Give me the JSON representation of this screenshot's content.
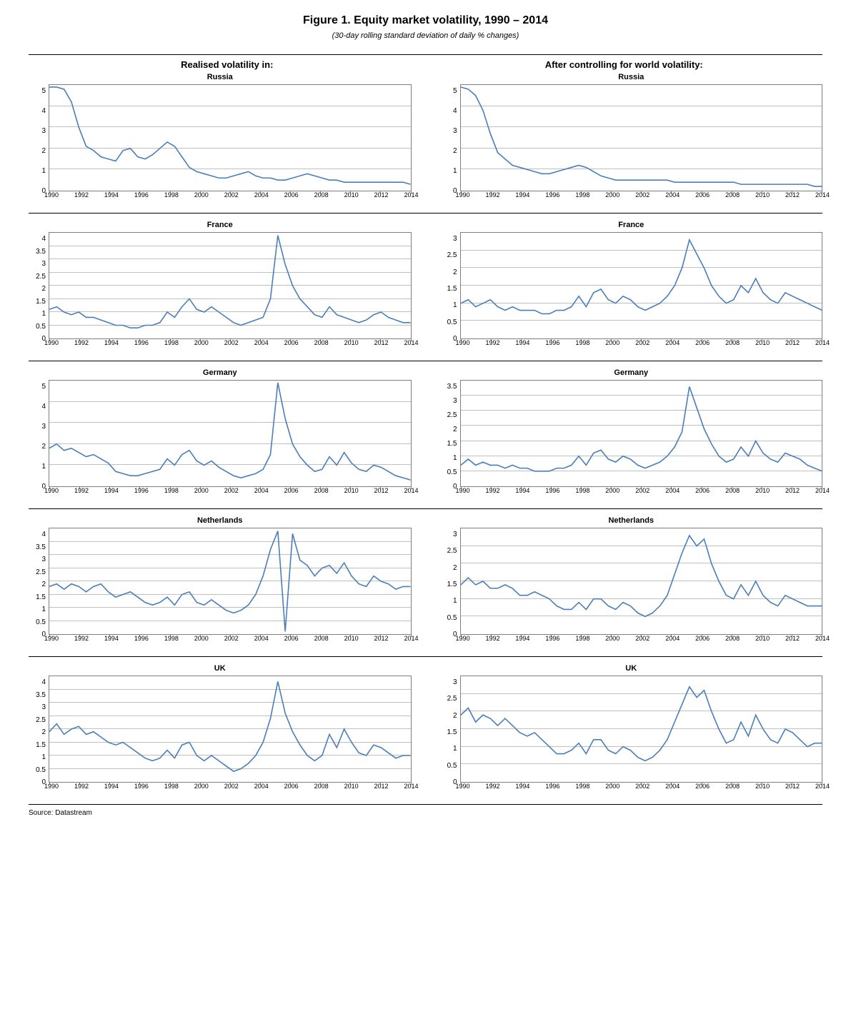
{
  "title": "Figure 1. Equity market volatility, 1990 – 2014",
  "subtitle": "(30-day rolling standard deviation of daily % changes)",
  "source": "Source: Datastream",
  "style": {
    "line_color": "#4a7ebb",
    "grid_color": "#bfbfbf",
    "axis_color": "#7f7f7f",
    "background": "#ffffff",
    "title_fontsize": 16,
    "label_fontsize": 11,
    "tick_fontsize": 9
  },
  "column_headers": [
    "Realised volatility in:",
    "After controlling for world volatility:"
  ],
  "x_ticks": [
    "1990",
    "1992",
    "1994",
    "1996",
    "1998",
    "2000",
    "2002",
    "2004",
    "2006",
    "2008",
    "2010",
    "2012",
    "2014"
  ],
  "rows": [
    {
      "left": {
        "title": "Russia",
        "y_ticks": [
          0,
          1,
          2,
          3,
          4,
          5
        ],
        "ymax": 5,
        "values": [
          4.9,
          4.9,
          4.8,
          4.2,
          3.0,
          2.1,
          1.9,
          1.6,
          1.5,
          1.4,
          1.9,
          2.0,
          1.6,
          1.5,
          1.7,
          2.0,
          2.3,
          2.1,
          1.6,
          1.1,
          0.9,
          0.8,
          0.7,
          0.6,
          0.6,
          0.7,
          0.8,
          0.9,
          0.7,
          0.6,
          0.6,
          0.5,
          0.5,
          0.6,
          0.7,
          0.8,
          0.7,
          0.6,
          0.5,
          0.5,
          0.4,
          0.4,
          0.4,
          0.4,
          0.4,
          0.4,
          0.4,
          0.4,
          0.4,
          0.3
        ]
      },
      "right": {
        "title": "Russia",
        "y_ticks": [
          0,
          1,
          2,
          3,
          4,
          5
        ],
        "ymax": 5,
        "values": [
          4.9,
          4.8,
          4.5,
          3.8,
          2.7,
          1.8,
          1.5,
          1.2,
          1.1,
          1.0,
          0.9,
          0.8,
          0.8,
          0.9,
          1.0,
          1.1,
          1.2,
          1.1,
          0.9,
          0.7,
          0.6,
          0.5,
          0.5,
          0.5,
          0.5,
          0.5,
          0.5,
          0.5,
          0.5,
          0.4,
          0.4,
          0.4,
          0.4,
          0.4,
          0.4,
          0.4,
          0.4,
          0.4,
          0.3,
          0.3,
          0.3,
          0.3,
          0.3,
          0.3,
          0.3,
          0.3,
          0.3,
          0.3,
          0.2,
          0.2
        ]
      }
    },
    {
      "left": {
        "title": "France",
        "y_ticks": [
          0,
          0.5,
          1,
          1.5,
          2,
          2.5,
          3,
          3.5,
          4
        ],
        "ymax": 4,
        "values": [
          1.1,
          1.2,
          1.0,
          0.9,
          1.0,
          0.8,
          0.8,
          0.7,
          0.6,
          0.5,
          0.5,
          0.4,
          0.4,
          0.5,
          0.5,
          0.6,
          1.0,
          0.8,
          1.2,
          1.5,
          1.1,
          1.0,
          1.2,
          1.0,
          0.8,
          0.6,
          0.5,
          0.6,
          0.7,
          0.8,
          1.5,
          3.9,
          2.8,
          2.0,
          1.5,
          1.2,
          0.9,
          0.8,
          1.2,
          0.9,
          0.8,
          0.7,
          0.6,
          0.7,
          0.9,
          1.0,
          0.8,
          0.7,
          0.6,
          0.6
        ]
      },
      "right": {
        "title": "France",
        "y_ticks": [
          0,
          0.5,
          1,
          1.5,
          2,
          2.5,
          3
        ],
        "ymax": 3,
        "values": [
          1.0,
          1.1,
          0.9,
          1.0,
          1.1,
          0.9,
          0.8,
          0.9,
          0.8,
          0.8,
          0.8,
          0.7,
          0.7,
          0.8,
          0.8,
          0.9,
          1.2,
          0.9,
          1.3,
          1.4,
          1.1,
          1.0,
          1.2,
          1.1,
          0.9,
          0.8,
          0.9,
          1.0,
          1.2,
          1.5,
          2.0,
          2.8,
          2.4,
          2.0,
          1.5,
          1.2,
          1.0,
          1.1,
          1.5,
          1.3,
          1.7,
          1.3,
          1.1,
          1.0,
          1.3,
          1.2,
          1.1,
          1.0,
          0.9,
          0.8
        ]
      }
    },
    {
      "left": {
        "title": "Germany",
        "y_ticks": [
          0,
          1,
          2,
          3,
          4,
          5
        ],
        "ymax": 5,
        "values": [
          1.8,
          2.0,
          1.7,
          1.8,
          1.6,
          1.4,
          1.5,
          1.3,
          1.1,
          0.7,
          0.6,
          0.5,
          0.5,
          0.6,
          0.7,
          0.8,
          1.3,
          1.0,
          1.5,
          1.7,
          1.2,
          1.0,
          1.2,
          0.9,
          0.7,
          0.5,
          0.4,
          0.5,
          0.6,
          0.8,
          1.5,
          4.9,
          3.2,
          2.0,
          1.4,
          1.0,
          0.7,
          0.8,
          1.4,
          1.0,
          1.6,
          1.1,
          0.8,
          0.7,
          1.0,
          0.9,
          0.7,
          0.5,
          0.4,
          0.3
        ]
      },
      "right": {
        "title": "Germany",
        "y_ticks": [
          0,
          0.5,
          1,
          1.5,
          2,
          2.5,
          3,
          3.5
        ],
        "ymax": 3.5,
        "values": [
          0.7,
          0.9,
          0.7,
          0.8,
          0.7,
          0.7,
          0.6,
          0.7,
          0.6,
          0.6,
          0.5,
          0.5,
          0.5,
          0.6,
          0.6,
          0.7,
          1.0,
          0.7,
          1.1,
          1.2,
          0.9,
          0.8,
          1.0,
          0.9,
          0.7,
          0.6,
          0.7,
          0.8,
          1.0,
          1.3,
          1.8,
          3.3,
          2.6,
          1.9,
          1.4,
          1.0,
          0.8,
          0.9,
          1.3,
          1.0,
          1.5,
          1.1,
          0.9,
          0.8,
          1.1,
          1.0,
          0.9,
          0.7,
          0.6,
          0.5
        ]
      }
    },
    {
      "left": {
        "title": "Netherlands",
        "y_ticks": [
          0,
          0.5,
          1,
          1.5,
          2,
          2.5,
          3,
          3.5,
          4
        ],
        "ymax": 4,
        "values": [
          1.8,
          1.9,
          1.7,
          1.9,
          1.8,
          1.6,
          1.8,
          1.9,
          1.6,
          1.4,
          1.5,
          1.6,
          1.4,
          1.2,
          1.1,
          1.2,
          1.4,
          1.1,
          1.5,
          1.6,
          1.2,
          1.1,
          1.3,
          1.1,
          0.9,
          0.8,
          0.9,
          1.1,
          1.5,
          2.2,
          3.2,
          3.9,
          0.1,
          3.8,
          2.8,
          2.6,
          2.2,
          2.5,
          2.6,
          2.3,
          2.7,
          2.2,
          1.9,
          1.8,
          2.2,
          2.0,
          1.9,
          1.7,
          1.8,
          1.8
        ]
      },
      "right": {
        "title": "Netherlands",
        "y_ticks": [
          0,
          0.5,
          1,
          1.5,
          2,
          2.5,
          3
        ],
        "ymax": 3,
        "values": [
          1.4,
          1.6,
          1.4,
          1.5,
          1.3,
          1.3,
          1.4,
          1.3,
          1.1,
          1.1,
          1.2,
          1.1,
          1.0,
          0.8,
          0.7,
          0.7,
          0.9,
          0.7,
          1.0,
          1.0,
          0.8,
          0.7,
          0.9,
          0.8,
          0.6,
          0.5,
          0.6,
          0.8,
          1.1,
          1.7,
          2.3,
          2.8,
          2.5,
          2.7,
          2.0,
          1.5,
          1.1,
          1.0,
          1.4,
          1.1,
          1.5,
          1.1,
          0.9,
          0.8,
          1.1,
          1.0,
          0.9,
          0.8,
          0.8,
          0.8
        ]
      }
    },
    {
      "left": {
        "title": "UK",
        "y_ticks": [
          0,
          0.5,
          1,
          1.5,
          2,
          2.5,
          3,
          3.5,
          4
        ],
        "ymax": 4,
        "values": [
          1.9,
          2.2,
          1.8,
          2.0,
          2.1,
          1.8,
          1.9,
          1.7,
          1.5,
          1.4,
          1.5,
          1.3,
          1.1,
          0.9,
          0.8,
          0.9,
          1.2,
          0.9,
          1.4,
          1.5,
          1.0,
          0.8,
          1.0,
          0.8,
          0.6,
          0.4,
          0.5,
          0.7,
          1.0,
          1.5,
          2.4,
          3.8,
          2.6,
          1.9,
          1.4,
          1.0,
          0.8,
          1.0,
          1.8,
          1.3,
          2.0,
          1.5,
          1.1,
          1.0,
          1.4,
          1.3,
          1.1,
          0.9,
          1.0,
          1.0
        ]
      },
      "right": {
        "title": "UK",
        "y_ticks": [
          0,
          0.5,
          1,
          1.5,
          2,
          2.5,
          3
        ],
        "ymax": 3,
        "values": [
          1.9,
          2.1,
          1.7,
          1.9,
          1.8,
          1.6,
          1.8,
          1.6,
          1.4,
          1.3,
          1.4,
          1.2,
          1.0,
          0.8,
          0.8,
          0.9,
          1.1,
          0.8,
          1.2,
          1.2,
          0.9,
          0.8,
          1.0,
          0.9,
          0.7,
          0.6,
          0.7,
          0.9,
          1.2,
          1.7,
          2.2,
          2.7,
          2.4,
          2.6,
          2.0,
          1.5,
          1.1,
          1.2,
          1.7,
          1.3,
          1.9,
          1.5,
          1.2,
          1.1,
          1.5,
          1.4,
          1.2,
          1.0,
          1.1,
          1.1
        ]
      }
    }
  ]
}
